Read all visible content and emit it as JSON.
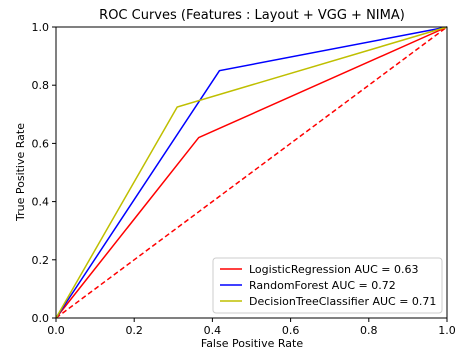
{
  "chart_data": {
    "type": "line",
    "title": "ROC Curves (Features : Layout + VGG + NIMA)",
    "xlabel": "False Positive Rate",
    "ylabel": "True Positive Rate",
    "xlim": [
      0.0,
      1.0
    ],
    "ylim": [
      0.0,
      1.0
    ],
    "xticks": [
      "0.0",
      "0.2",
      "0.4",
      "0.6",
      "0.8",
      "1.0"
    ],
    "yticks": [
      "0.0",
      "0.2",
      "0.4",
      "0.6",
      "0.8",
      "1.0"
    ],
    "grid": false,
    "legend_position": "lower-right",
    "series": [
      {
        "name": "LogisticRegression AUC = 0.63",
        "color": "#ff0000",
        "x": [
          0.0,
          0.365,
          1.0
        ],
        "y": [
          0.0,
          0.62,
          1.0
        ]
      },
      {
        "name": "RandomForest AUC = 0.72",
        "color": "#0000ff",
        "x": [
          0.0,
          0.418,
          1.0
        ],
        "y": [
          0.0,
          0.85,
          1.0
        ]
      },
      {
        "name": "DecisionTreeClassifier AUC = 0.71",
        "color": "#bfbf00",
        "x": [
          0.0,
          0.31,
          1.0
        ],
        "y": [
          0.0,
          0.725,
          1.0
        ]
      }
    ],
    "reference_line": {
      "color": "#ff0000",
      "style": "dashed",
      "x": [
        0.0,
        1.0
      ],
      "y": [
        0.0,
        1.0
      ]
    }
  }
}
